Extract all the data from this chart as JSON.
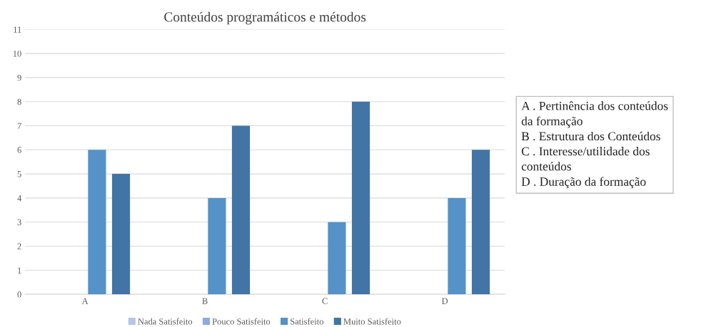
{
  "chart_data": {
    "type": "bar",
    "title": "Conteúdos programáticos e métodos",
    "categories": [
      "A",
      "B",
      "C",
      "D"
    ],
    "series": [
      {
        "name": "Nada Satisfeito",
        "color": "#b4c7e7",
        "values": [
          0,
          0,
          0,
          0
        ]
      },
      {
        "name": "Pouco Satisfeito",
        "color": "#8faadc",
        "values": [
          0,
          0,
          0,
          0
        ]
      },
      {
        "name": "Satisfeito",
        "color": "#5592c8",
        "values": [
          6,
          4,
          3,
          4
        ]
      },
      {
        "name": "Muito Satisfeito",
        "color": "#4275a6",
        "values": [
          5,
          7,
          8,
          6
        ]
      }
    ],
    "ylim": [
      0,
      11
    ],
    "yticks": [
      0,
      1,
      2,
      3,
      4,
      5,
      6,
      7,
      8,
      9,
      10,
      11
    ],
    "grid": "y",
    "legend": "bottom",
    "annotations": [
      "A . Pertinência dos conteúdos\nda formação",
      "B . Estrutura dos Conteúdos",
      "C . Interesse/utilidade dos\nconteúdos",
      "D . Duração da formação"
    ]
  }
}
